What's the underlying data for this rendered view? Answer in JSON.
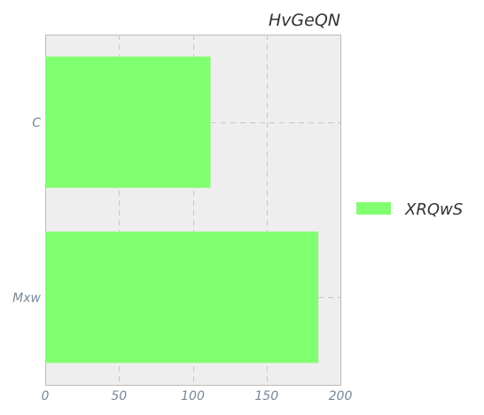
{
  "chart_data": {
    "type": "bar",
    "orientation": "horizontal",
    "title": "HvGeQN",
    "categories": [
      "C",
      "Mxw"
    ],
    "series": [
      {
        "name": "XRQwS",
        "values": [
          112,
          185
        ],
        "color": "#80ff70"
      }
    ],
    "xlabel": "",
    "ylabel": "",
    "xlim": [
      0,
      200
    ],
    "xticks": [
      0,
      50,
      100,
      150,
      200
    ],
    "grid": true,
    "legend_position": "right",
    "plot_background": "#eeeeee"
  }
}
